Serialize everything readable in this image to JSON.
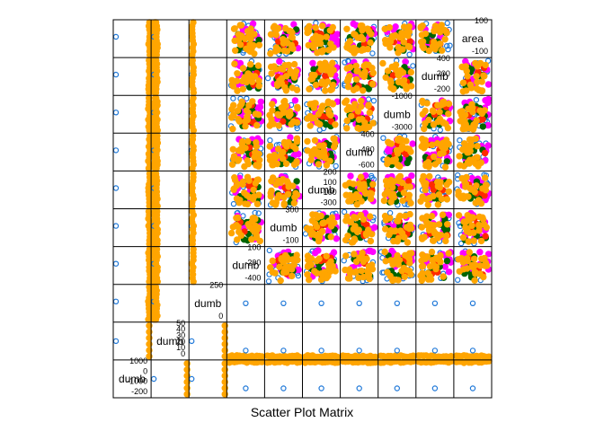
{
  "chart_data": {
    "type": "scatter",
    "title": "",
    "xlabel": "Scatter Plot Matrix",
    "ylabel": "",
    "grid": false,
    "legend": "none",
    "colors": {
      "g1": "#1f78d8",
      "g2": "#ff00ff",
      "g3": "#006400",
      "g4": "#ff2a00",
      "g5": "#ffa500"
    },
    "variables": [
      {
        "name": "dumb",
        "ticks": [
          "-200",
          "-1000",
          "0",
          "1000"
        ]
      },
      {
        "name": "dumb",
        "ticks": [
          "0",
          "10",
          "20",
          "30",
          "40",
          "50"
        ]
      },
      {
        "name": "dumb",
        "ticks": [
          "0",
          "250"
        ]
      },
      {
        "name": "dumb",
        "ticks": [
          "-400",
          "-200",
          "100"
        ]
      },
      {
        "name": "dumb",
        "ticks": [
          "-100",
          "300"
        ]
      },
      {
        "name": "dumb",
        "ticks": [
          "-300",
          "-100",
          "100",
          "200"
        ]
      },
      {
        "name": "dumb",
        "ticks": [
          "-600",
          "-400",
          "400"
        ]
      },
      {
        "name": "dumb",
        "ticks": [
          "-3000",
          "-1000"
        ]
      },
      {
        "name": "dumb",
        "ticks": [
          "-200",
          "200",
          "400"
        ]
      },
      {
        "name": "area",
        "ticks": [
          "-100",
          "100"
        ]
      }
    ]
  }
}
